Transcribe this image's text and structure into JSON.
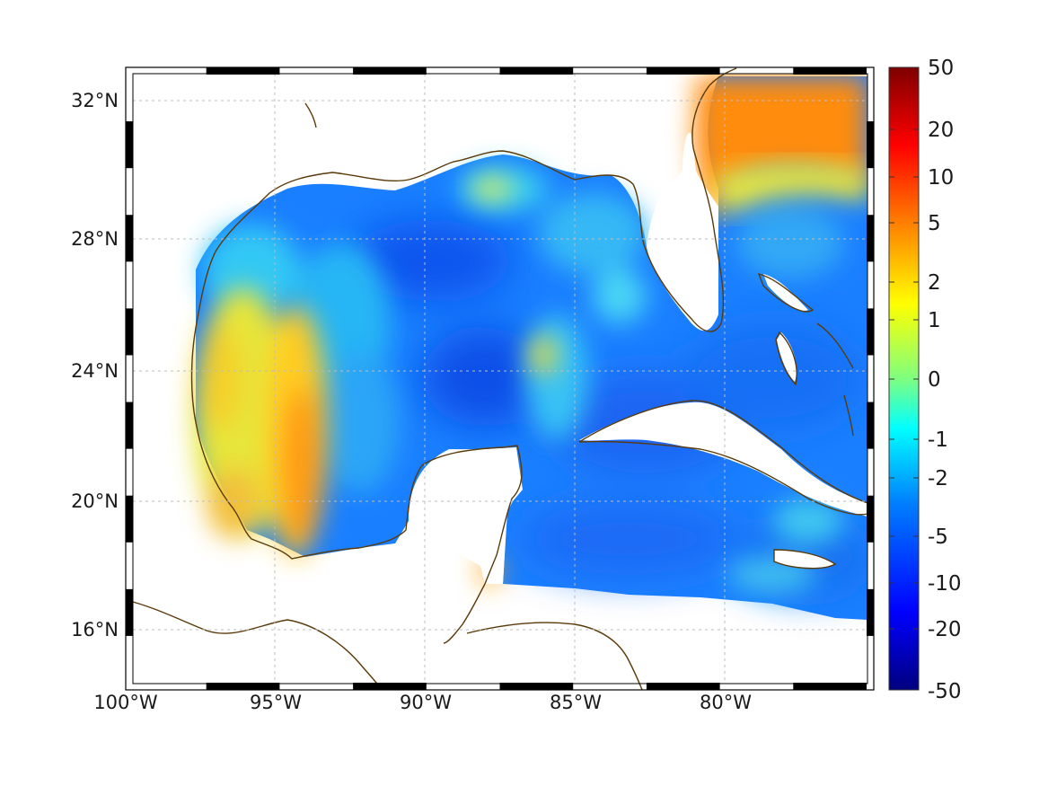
{
  "map": {
    "lon_ticks": [
      "100°W",
      "95°W",
      "90°W",
      "85°W",
      "80°W"
    ],
    "lat_ticks": [
      "32°N",
      "28°N",
      "24°N",
      "20°N",
      "16°N"
    ],
    "extent": {
      "lon": [
        -100,
        -75
      ],
      "lat": [
        14.25,
        33
      ]
    },
    "grid": true,
    "coastline_color": "#5a3a0a",
    "land_color": "#ffffff",
    "frame_style": "alternating black/white border"
  },
  "colorbar": {
    "labels": [
      "50",
      "20",
      "10",
      "5",
      "2",
      "1",
      "0",
      "-1",
      "-2",
      "-5",
      "-10",
      "-20",
      "-50"
    ],
    "colormap": "jet",
    "colors": [
      "#00007f",
      "#0000ff",
      "#007fff",
      "#00ffff",
      "#7fff7f",
      "#ffff00",
      "#ff7f00",
      "#ff0000",
      "#7f0000"
    ]
  }
}
